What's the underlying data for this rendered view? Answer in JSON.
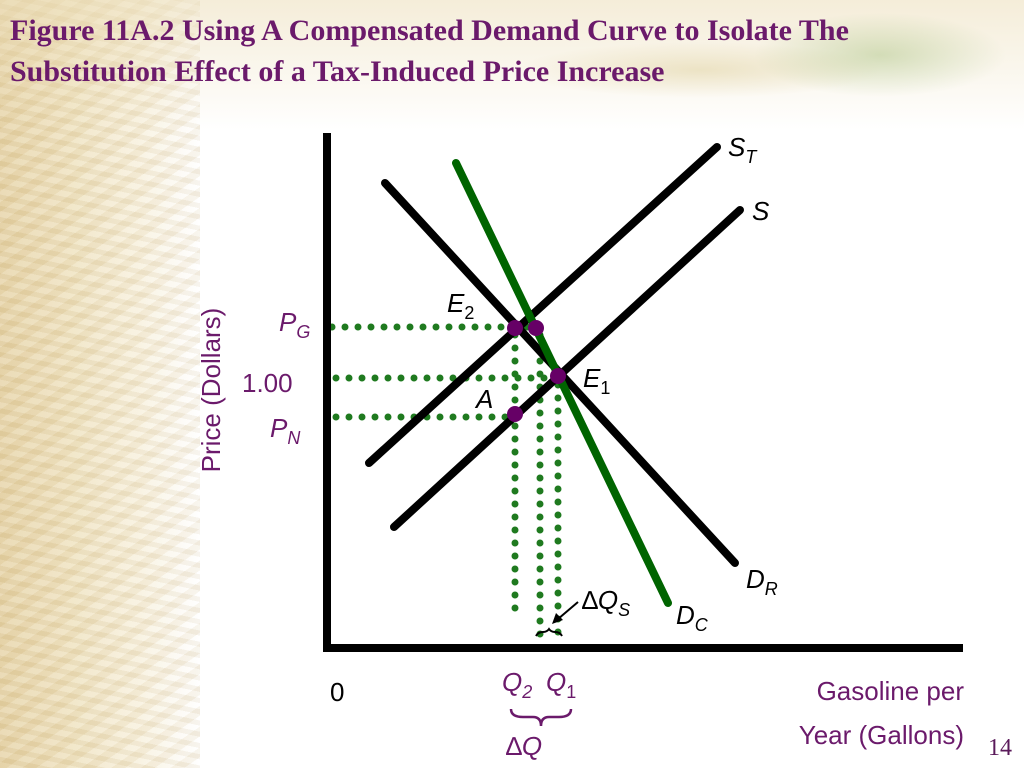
{
  "slide": {
    "title": "Figure 11A.2 Using A Compensated Demand Curve to Isolate The Substitution Effect of a Tax-Induced Price Increase",
    "number": "14"
  },
  "diagram": {
    "y_axis_label": "Price (Dollars)",
    "x_axis_label_line1": "Gasoline per",
    "x_axis_label_line2": "Year (Gallons)",
    "origin_label": "0",
    "price_pg": {
      "main": "P",
      "sub": "G"
    },
    "price_100": "1.00",
    "price_pn": {
      "main": "P",
      "sub": "N"
    },
    "curve_st": {
      "main": "S",
      "sub": "T"
    },
    "curve_s": "S",
    "curve_dr": {
      "main": "D",
      "sub": "R"
    },
    "curve_dc": {
      "main": "D",
      "sub": "C"
    },
    "point_e2": {
      "main": "E",
      "sub": "2"
    },
    "point_e1": {
      "main": "E",
      "sub": "1"
    },
    "point_a": "A",
    "delta_qs": {
      "delta": "∆",
      "main": "Q",
      "sub": "S"
    },
    "q2": {
      "main": "Q",
      "sub": "2"
    },
    "q1": {
      "main": "Q",
      "sub": "1"
    },
    "delta_q": {
      "delta": "∆",
      "main": "Q"
    },
    "colors": {
      "axis": "#000000",
      "supply_demand": "#000000",
      "compensated_demand": "#006400",
      "guide_dots": "#1f7a1f",
      "points": "#660066",
      "labels_purple": "#6b1a6b"
    }
  }
}
